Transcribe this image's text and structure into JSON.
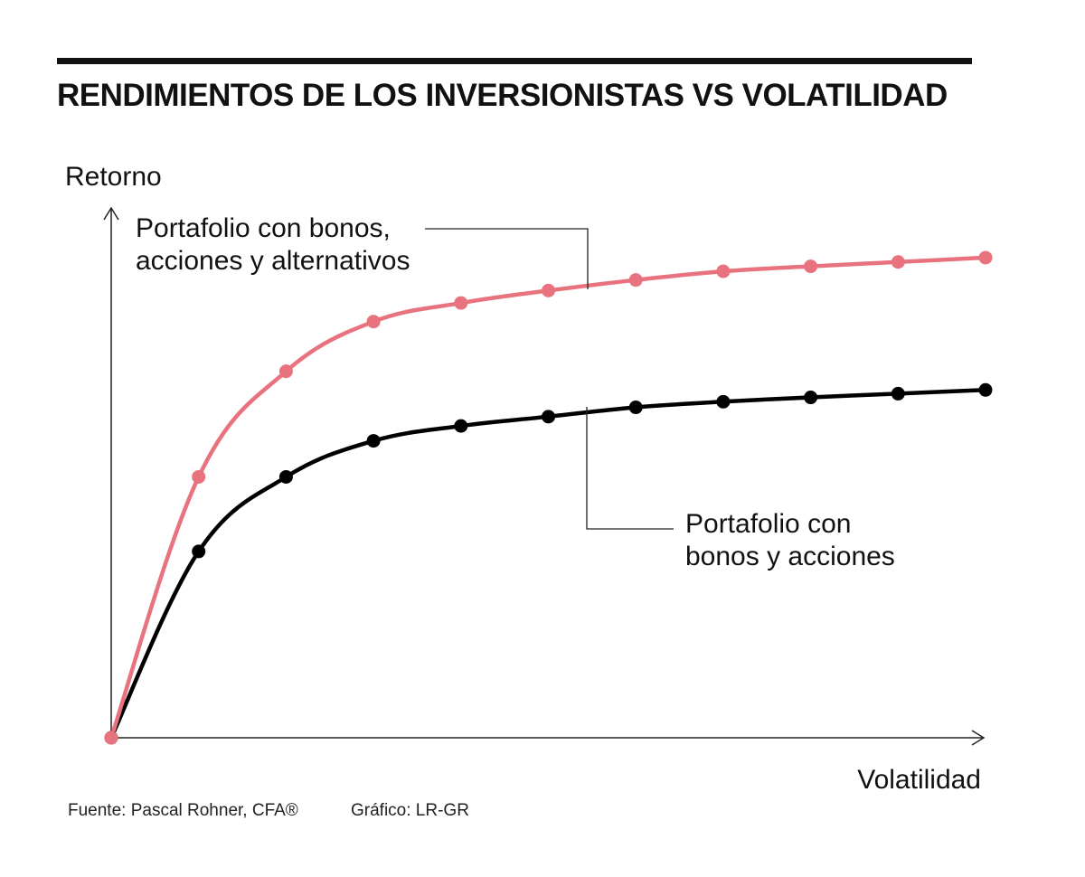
{
  "title": "RENDIMIENTOS DE LOS INVERSIONISTAS VS VOLATILIDAD",
  "footer": {
    "source": "Fuente: Pascal Rohner, CFA®",
    "credit": "Gráfico: LR-GR"
  },
  "chart_data": {
    "type": "line",
    "title": "RENDIMIENTOS DE LOS INVERSIONISTAS VS VOLATILIDAD",
    "xlabel": "Volatilidad",
    "ylabel": "Retorno",
    "xlim": [
      0,
      10.3
    ],
    "ylim": [
      0,
      10.5
    ],
    "grid": false,
    "legend": "inline annotations",
    "x": [
      0,
      1,
      2,
      3,
      4,
      5,
      6,
      7,
      8,
      9,
      10
    ],
    "series": [
      {
        "name": "Portafolio con bonos, acciones y alternativos",
        "label_lines": [
          "Portafolio con bonos,",
          "acciones y alternativos"
        ],
        "color": "#e8737e",
        "values": [
          0,
          4.2,
          5.9,
          6.7,
          7.0,
          7.2,
          7.37,
          7.51,
          7.59,
          7.66,
          7.73
        ]
      },
      {
        "name": "Portafolio con bonos y acciones",
        "label_lines": [
          "Portafolio con",
          "bonos y acciones"
        ],
        "color": "#000000",
        "values": [
          0,
          3.0,
          4.2,
          4.78,
          5.02,
          5.17,
          5.32,
          5.41,
          5.48,
          5.54,
          5.6
        ]
      }
    ]
  }
}
